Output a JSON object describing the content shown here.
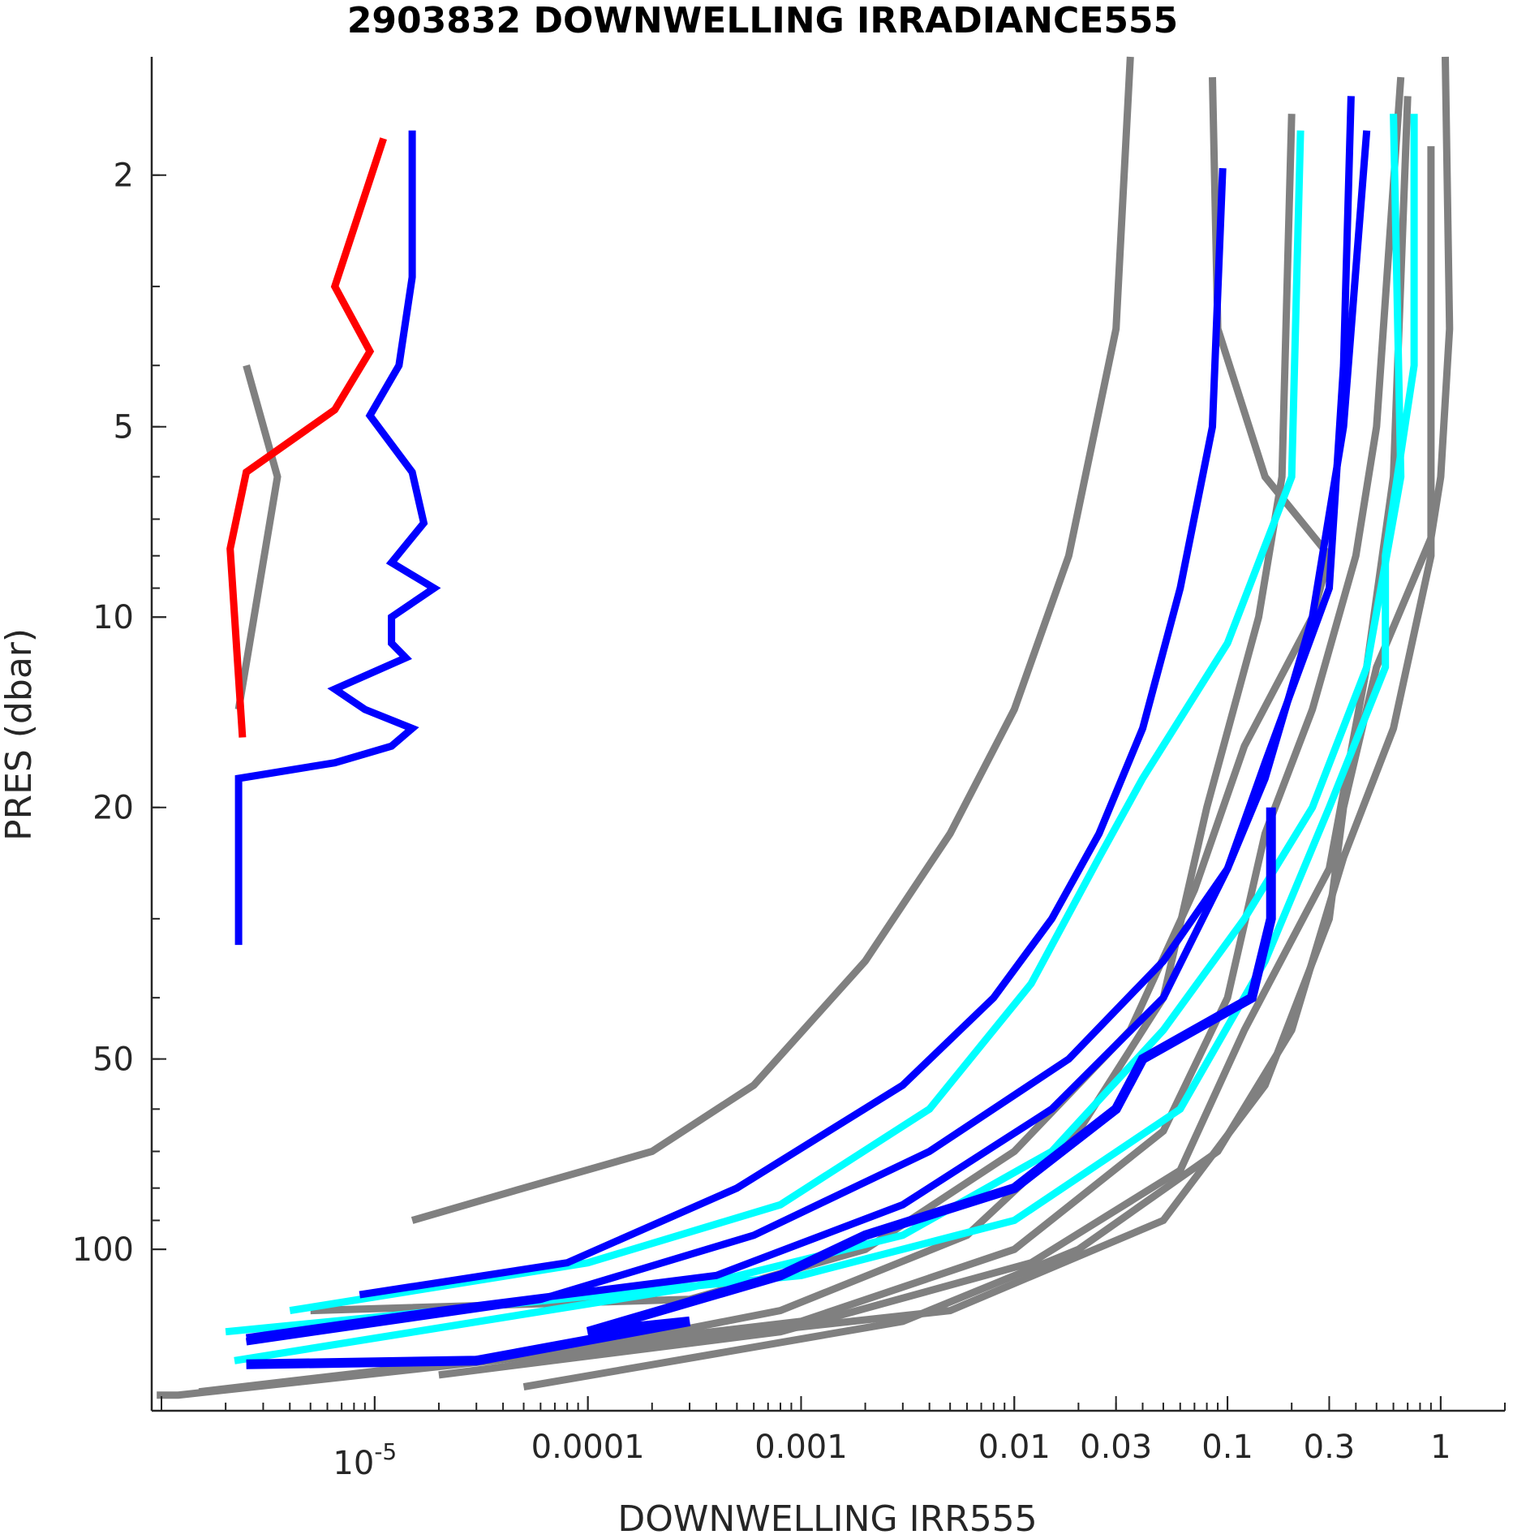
{
  "chart_data": {
    "type": "line",
    "title": "2903832  DOWNWELLING IRRADIANCE555",
    "xlabel": "DOWNWELLING IRR555",
    "ylabel": "PRES (dbar)",
    "x_scale": "log",
    "y_scale": "log",
    "y_reversed": true,
    "xlim": [
      9e-07,
      2.0
    ],
    "ylim": [
      1.3,
      180
    ],
    "x_ticks": [
      {
        "value": 1e-05,
        "base": "10",
        "exp": "-5"
      },
      {
        "value": 0.0001,
        "label": "0.0001"
      },
      {
        "value": 0.001,
        "label": "0.001"
      },
      {
        "value": 0.01,
        "label": "0.01"
      },
      {
        "value": 0.03,
        "label": "0.03"
      },
      {
        "value": 0.1,
        "label": "0.1"
      },
      {
        "value": 0.3,
        "label": "0.3"
      },
      {
        "value": 1,
        "label": "1"
      }
    ],
    "y_ticks": [
      {
        "value": 2,
        "label": "2"
      },
      {
        "value": 5,
        "label": "5"
      },
      {
        "value": 10,
        "label": "10"
      },
      {
        "value": 20,
        "label": "20"
      },
      {
        "value": 50,
        "label": "50"
      },
      {
        "value": 100,
        "label": "100"
      }
    ],
    "grid": false,
    "legend": "none",
    "series": [
      {
        "color": "#808080",
        "width": 9,
        "points": [
          [
            1.05,
            1.3
          ],
          [
            1.1,
            3.5
          ],
          [
            1.0,
            6.0
          ],
          [
            0.9,
            7.5
          ],
          [
            0.5,
            12
          ],
          [
            0.35,
            20
          ],
          [
            0.3,
            30
          ],
          [
            0.15,
            55
          ],
          [
            0.05,
            90
          ],
          [
            0.005,
            125
          ],
          [
            1.2e-06,
            170
          ],
          [
            9.5e-07,
            170
          ]
        ]
      },
      {
        "color": "#808080",
        "width": 9,
        "points": [
          [
            0.65,
            1.4
          ],
          [
            0.5,
            5.0
          ],
          [
            0.4,
            8
          ],
          [
            0.25,
            14
          ],
          [
            0.15,
            22
          ],
          [
            0.1,
            40
          ],
          [
            0.05,
            65
          ],
          [
            0.01,
            100
          ],
          [
            0.001,
            130
          ],
          [
            1.5e-06,
            168
          ]
        ]
      },
      {
        "color": "#808080",
        "width": 9,
        "points": [
          [
            0.9,
            1.8
          ],
          [
            0.9,
            8
          ],
          [
            0.6,
            15
          ],
          [
            0.35,
            24
          ],
          [
            0.2,
            45
          ],
          [
            0.09,
            70
          ],
          [
            0.02,
            100
          ],
          [
            0.003,
            130
          ],
          [
            5e-05,
            165
          ]
        ]
      },
      {
        "color": "#808080",
        "width": 9,
        "points": [
          [
            0.7,
            1.5
          ],
          [
            0.6,
            6
          ],
          [
            0.45,
            12
          ],
          [
            0.3,
            25
          ],
          [
            0.12,
            45
          ],
          [
            0.06,
            75
          ],
          [
            0.012,
            105
          ],
          [
            0.0008,
            135
          ],
          [
            2e-05,
            158
          ]
        ]
      },
      {
        "color": "#808080",
        "width": 9,
        "points": [
          [
            0.2,
            1.6
          ],
          [
            0.18,
            6
          ],
          [
            0.14,
            10
          ],
          [
            0.08,
            20
          ],
          [
            0.05,
            40
          ],
          [
            0.02,
            65
          ],
          [
            0.006,
            95
          ],
          [
            0.0008,
            125
          ],
          [
            5e-05,
            150
          ]
        ]
      },
      {
        "color": "#808080",
        "width": 9,
        "points": [
          [
            0.085,
            1.4
          ],
          [
            0.09,
            3.5
          ],
          [
            0.15,
            6
          ],
          [
            0.3,
            8
          ],
          [
            0.25,
            10
          ],
          [
            0.12,
            16
          ],
          [
            0.07,
            27
          ],
          [
            0.035,
            45
          ],
          [
            0.01,
            70
          ],
          [
            0.002,
            100
          ],
          [
            0.0003,
            120
          ],
          [
            5e-06,
            125
          ]
        ]
      },
      {
        "color": "#808080",
        "width": 9,
        "points": [
          [
            0.035,
            1.3
          ],
          [
            0.03,
            3.5
          ],
          [
            0.018,
            8
          ],
          [
            0.01,
            14
          ],
          [
            0.005,
            22
          ],
          [
            0.002,
            35
          ],
          [
            0.0006,
            55
          ],
          [
            0.0002,
            70
          ],
          [
            5e-05,
            80
          ],
          [
            1.5e-05,
            90
          ]
        ]
      },
      {
        "color": "#808080",
        "width": 9,
        "points": [
          [
            2.5e-06,
            4.0
          ],
          [
            3.5e-06,
            6.0
          ],
          [
            2.3e-06,
            14.0
          ]
        ]
      },
      {
        "color": "#00ffff",
        "width": 9,
        "points": [
          [
            0.75,
            1.6
          ],
          [
            0.75,
            4
          ],
          [
            0.55,
            8
          ],
          [
            0.55,
            12
          ],
          [
            0.3,
            20
          ],
          [
            0.15,
            35
          ],
          [
            0.06,
            60
          ],
          [
            0.01,
            90
          ],
          [
            0.001,
            110
          ],
          [
            2e-06,
            135
          ]
        ]
      },
      {
        "color": "#00ffff",
        "width": 9,
        "points": [
          [
            0.6,
            1.6
          ],
          [
            0.65,
            6
          ],
          [
            0.45,
            12
          ],
          [
            0.25,
            20
          ],
          [
            0.12,
            30
          ],
          [
            0.05,
            45
          ],
          [
            0.015,
            70
          ],
          [
            0.003,
            95
          ],
          [
            0.0003,
            115
          ],
          [
            2.2e-06,
            150
          ]
        ]
      },
      {
        "color": "#00ffff",
        "width": 9,
        "points": [
          [
            0.22,
            1.7
          ],
          [
            0.2,
            6
          ],
          [
            0.1,
            11
          ],
          [
            0.04,
            18
          ],
          [
            0.025,
            24
          ],
          [
            0.012,
            38
          ],
          [
            0.004,
            60
          ],
          [
            0.0008,
            85
          ],
          [
            0.0001,
            105
          ],
          [
            4e-06,
            125
          ]
        ]
      },
      {
        "color": "#0000ff",
        "width": 9,
        "points": [
          [
            0.45,
            1.7
          ],
          [
            0.35,
            5
          ],
          [
            0.25,
            10
          ],
          [
            0.15,
            18
          ],
          [
            0.1,
            25
          ],
          [
            0.05,
            35
          ],
          [
            0.018,
            50
          ],
          [
            0.004,
            70
          ],
          [
            0.0006,
            95
          ],
          [
            6e-05,
            120
          ],
          [
            2.5e-06,
            140
          ]
        ]
      },
      {
        "color": "#0000ff",
        "width": 9,
        "points": [
          [
            0.38,
            1.5
          ],
          [
            0.35,
            4
          ],
          [
            0.3,
            9
          ],
          [
            0.15,
            17
          ],
          [
            0.1,
            25
          ],
          [
            0.05,
            40
          ],
          [
            0.015,
            60
          ],
          [
            0.003,
            85
          ],
          [
            0.0004,
            110
          ],
          [
            2e-05,
            125
          ],
          [
            2.5e-06,
            138
          ]
        ]
      },
      {
        "color": "#0000ff",
        "width": 9,
        "points": [
          [
            0.095,
            1.95
          ],
          [
            0.085,
            5
          ],
          [
            0.06,
            9
          ],
          [
            0.04,
            15
          ],
          [
            0.025,
            22
          ],
          [
            0.015,
            30
          ],
          [
            0.008,
            40
          ],
          [
            0.003,
            55
          ],
          [
            0.0005,
            80
          ],
          [
            8e-05,
            105
          ],
          [
            8.5e-06,
            118
          ]
        ]
      },
      {
        "color": "#0000ff",
        "width": 12,
        "points": [
          [
            0.16,
            20
          ],
          [
            0.16,
            30
          ],
          [
            0.13,
            40
          ],
          [
            0.04,
            50
          ],
          [
            0.03,
            60
          ],
          [
            0.01,
            80
          ],
          [
            0.002,
            95
          ],
          [
            0.0008,
            110
          ],
          [
            0.0001,
            135
          ],
          [
            0.0003,
            130
          ],
          [
            3e-05,
            150
          ],
          [
            2.5e-06,
            152
          ]
        ]
      },
      {
        "color": "#ff0000",
        "width": 9,
        "points": [
          [
            1.1e-05,
            1.75
          ],
          [
            6.5e-06,
            3.0
          ],
          [
            9.5e-06,
            3.8
          ],
          [
            6.5e-06,
            4.7
          ],
          [
            2.5e-06,
            5.9
          ],
          [
            2.1e-06,
            7.8
          ],
          [
            2.4e-06,
            15.5
          ]
        ]
      },
      {
        "color": "#0000ff",
        "width": 9,
        "points": [
          [
            1.5e-05,
            1.7
          ],
          [
            1.5e-05,
            2.9
          ],
          [
            1.3e-05,
            4.0
          ],
          [
            9.5e-06,
            4.8
          ],
          [
            1.5e-05,
            5.9
          ],
          [
            1.7e-05,
            7.1
          ],
          [
            1.2e-05,
            8.2
          ],
          [
            1.9e-05,
            9.0
          ],
          [
            1.2e-05,
            10.0
          ],
          [
            1.2e-05,
            11.0
          ],
          [
            1.4e-05,
            11.6
          ],
          [
            6.5e-06,
            13.0
          ],
          [
            9e-06,
            14.0
          ],
          [
            1.5e-05,
            15.0
          ],
          [
            1.2e-05,
            16.0
          ],
          [
            6.5e-06,
            17.0
          ],
          [
            2.3e-06,
            18.0
          ],
          [
            2.3e-06,
            33.0
          ]
        ]
      }
    ]
  }
}
